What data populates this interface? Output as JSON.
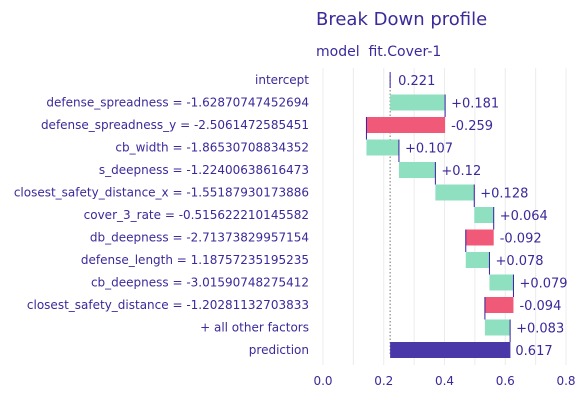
{
  "chart_data": {
    "type": "bar",
    "subtype": "waterfall",
    "title": "Break Down profile",
    "subtitle": "model  fit.Cover-1",
    "xlim": [
      -0.05,
      0.8
    ],
    "x_ticks": [
      "0.0",
      "0.2",
      "0.4",
      "0.6",
      "0.8"
    ],
    "x_tick_values": [
      0.0,
      0.2,
      0.4,
      0.6,
      0.8
    ],
    "grid": true,
    "intercept": 0.221,
    "prediction": 0.617,
    "colors": {
      "positive": "#8fe0c1",
      "negative": "#f05a78",
      "prediction": "#4b38a8",
      "text": "#3a2a9a",
      "grid": "#ececec"
    },
    "rows": [
      {
        "label": "intercept",
        "kind": "intercept",
        "value": 0.221,
        "text": "0.221"
      },
      {
        "label": "defense_spreadness = -1.62870747452694",
        "kind": "contribution",
        "value": 0.181,
        "text": "+0.181"
      },
      {
        "label": "defense_spreadness_y = -2.5061472585451",
        "kind": "contribution",
        "value": -0.259,
        "text": "-0.259"
      },
      {
        "label": "cb_width = -1.86530708834352",
        "kind": "contribution",
        "value": 0.107,
        "text": "+0.107"
      },
      {
        "label": "s_deepness = -1.22400638616473",
        "kind": "contribution",
        "value": 0.12,
        "text": "+0.12"
      },
      {
        "label": "closest_safety_distance_x = -1.55187930173886",
        "kind": "contribution",
        "value": 0.128,
        "text": "+0.128"
      },
      {
        "label": "cover_3_rate = -0.515622210145582",
        "kind": "contribution",
        "value": 0.064,
        "text": "+0.064"
      },
      {
        "label": "db_deepness = -2.71373829957154",
        "kind": "contribution",
        "value": -0.092,
        "text": "-0.092"
      },
      {
        "label": "defense_length = 1.18757235195235",
        "kind": "contribution",
        "value": 0.078,
        "text": "+0.078"
      },
      {
        "label": "cb_deepness = -3.01590748275412",
        "kind": "contribution",
        "value": 0.079,
        "text": "+0.079"
      },
      {
        "label": "closest_safety_distance = -1.20281132703833",
        "kind": "contribution",
        "value": -0.094,
        "text": "-0.094"
      },
      {
        "label": "+ all other factors",
        "kind": "contribution",
        "value": 0.083,
        "text": "+0.083"
      },
      {
        "label": "prediction",
        "kind": "prediction",
        "value": 0.617,
        "text": "0.617"
      }
    ]
  }
}
